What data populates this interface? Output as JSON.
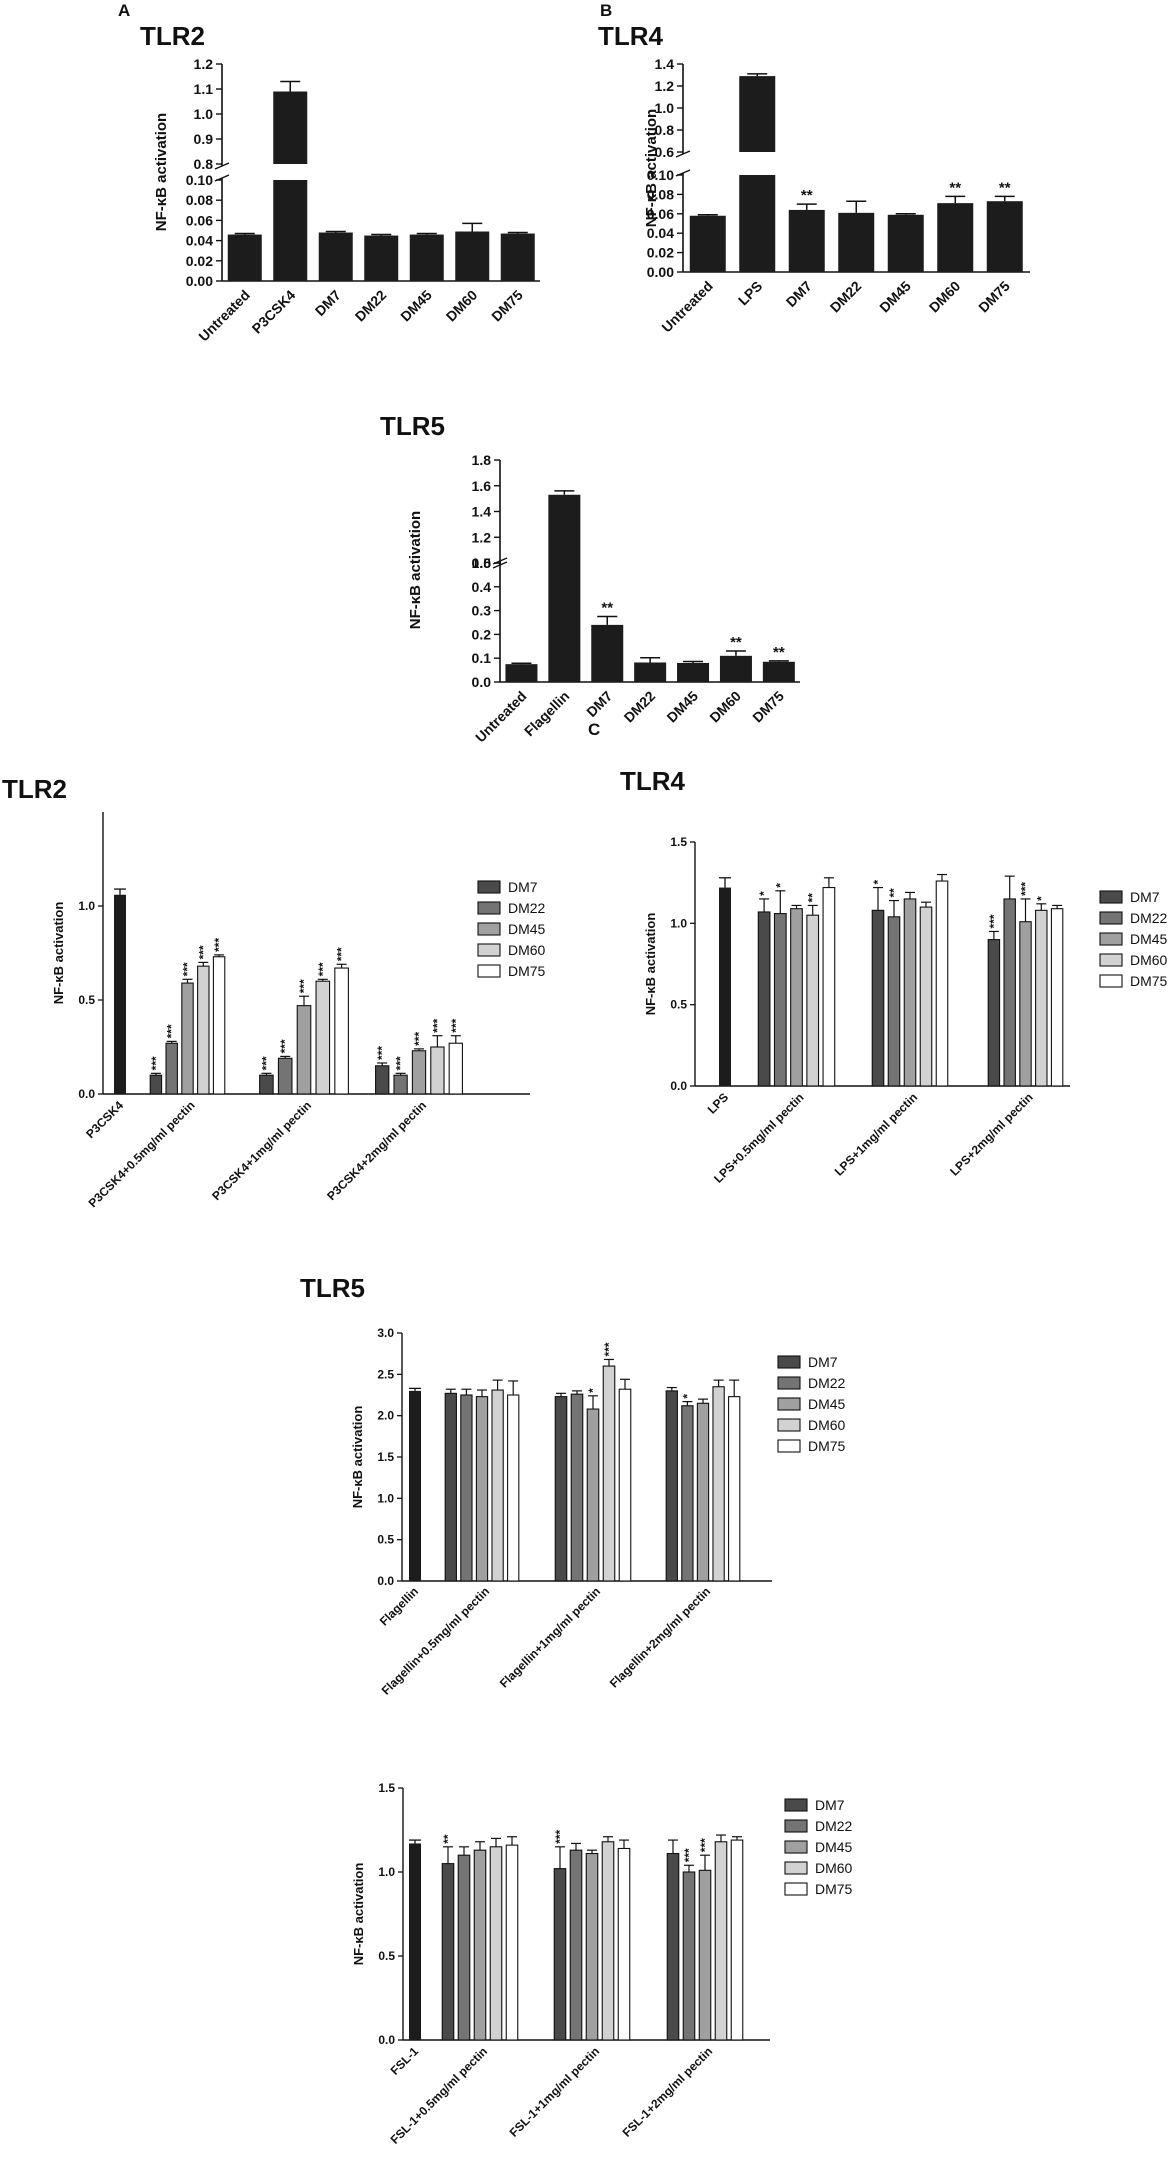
{
  "panel_labels": [
    "A",
    "B",
    "C"
  ],
  "colors": {
    "single_bar": "#1c1c1c",
    "DM7": "#4a4a4a",
    "DM22": "#747474",
    "DM45": "#a0a0a0",
    "DM60": "#d2d2d2",
    "DM75": "#ffffff"
  },
  "chart_data": [
    {
      "id": "A-TLR2",
      "panel": "A",
      "type": "bar",
      "title": "TLR2",
      "ylabel": "NF-κB activation",
      "broken_axis": true,
      "ylim_lower": [
        0,
        0.1
      ],
      "ylim_upper": [
        0.8,
        1.2
      ],
      "yticks_lower": [
        "0.00",
        "0.02",
        "0.04",
        "0.06",
        "0.08",
        "0.10"
      ],
      "yticks_upper": [
        "0.8",
        "0.9",
        "1.0",
        "1.1",
        "1.2"
      ],
      "categories": [
        "Untreated",
        "P3CSK4",
        "DM7",
        "DM22",
        "DM45",
        "DM60",
        "DM75"
      ],
      "values": [
        0.046,
        1.09,
        0.048,
        0.045,
        0.046,
        0.049,
        0.047
      ],
      "errors": [
        0.001,
        0.04,
        0.001,
        0.001,
        0.001,
        0.008,
        0.001
      ],
      "annotations": [
        "",
        "",
        "",
        "",
        "",
        "",
        ""
      ]
    },
    {
      "id": "A-TLR4",
      "panel": "A",
      "type": "bar",
      "title": "TLR4",
      "ylabel": "NF-κB activation",
      "broken_axis": true,
      "ylim_lower": [
        0,
        0.1
      ],
      "ylim_upper": [
        0.6,
        1.4
      ],
      "yticks_lower": [
        "0.00",
        "0.02",
        "0.04",
        "0.06",
        "0.08",
        "0.10"
      ],
      "yticks_upper": [
        "0.6",
        "0.8",
        "1.0",
        "1.2",
        "1.4"
      ],
      "categories": [
        "Untreated",
        "LPS",
        "DM7",
        "DM22",
        "DM45",
        "DM60",
        "DM75"
      ],
      "values": [
        0.058,
        1.29,
        0.064,
        0.061,
        0.059,
        0.071,
        0.073
      ],
      "errors": [
        0.001,
        0.02,
        0.006,
        0.012,
        0.001,
        0.007,
        0.005
      ],
      "annotations": [
        "",
        "",
        "**",
        "",
        "",
        "**",
        "**"
      ]
    },
    {
      "id": "A-TLR5",
      "panel": "A",
      "type": "bar",
      "title": "TLR5",
      "ylabel": "NF-κB activation",
      "broken_axis": true,
      "ylim_lower": [
        0,
        0.5
      ],
      "ylim_upper": [
        1.0,
        1.8
      ],
      "yticks_lower": [
        "0.0",
        "0.1",
        "0.2",
        "0.3",
        "0.4",
        "0.5"
      ],
      "yticks_upper": [
        "1.0",
        "1.2",
        "1.4",
        "1.6",
        "1.8"
      ],
      "categories": [
        "Untreated",
        "Flagellin",
        "DM7",
        "DM22",
        "DM45",
        "DM60",
        "DM75"
      ],
      "values": [
        0.075,
        1.53,
        0.24,
        0.082,
        0.08,
        0.11,
        0.085
      ],
      "errors": [
        0.004,
        0.03,
        0.035,
        0.02,
        0.006,
        0.02,
        0.004
      ],
      "annotations": [
        "",
        "",
        "**",
        "",
        "",
        "**",
        "**"
      ]
    },
    {
      "id": "B-TLR2",
      "panel": "B",
      "type": "bar",
      "title": "TLR2",
      "ylabel": "NF-κB activation",
      "ylim": [
        0,
        1.5
      ],
      "yticks": [
        "0.0",
        "0.5",
        "1.0"
      ],
      "legend": "right",
      "control": {
        "label": "P3CSK4",
        "value": 1.06,
        "error": 0.03
      },
      "groups": [
        "P3CSK4+0.5mg/ml pectin",
        "P3CSK4+1mg/ml pectin",
        "P3CSK4+2mg/ml pectin"
      ],
      "series": [
        {
          "name": "DM7",
          "values": [
            0.1,
            0.1,
            0.15
          ],
          "errors": [
            0.01,
            0.01,
            0.015
          ],
          "stars": [
            "***",
            "***",
            "***"
          ]
        },
        {
          "name": "DM22",
          "values": [
            0.27,
            0.19,
            0.1
          ],
          "errors": [
            0.01,
            0.01,
            0.01
          ],
          "stars": [
            "***",
            "***",
            "***"
          ]
        },
        {
          "name": "DM45",
          "values": [
            0.59,
            0.47,
            0.23
          ],
          "errors": [
            0.02,
            0.05,
            0.01
          ],
          "stars": [
            "***",
            "***",
            "***"
          ]
        },
        {
          "name": "DM60",
          "values": [
            0.68,
            0.6,
            0.25
          ],
          "errors": [
            0.02,
            0.01,
            0.06
          ],
          "stars": [
            "***",
            "***",
            "***"
          ]
        },
        {
          "name": "DM75",
          "values": [
            0.73,
            0.67,
            0.27
          ],
          "errors": [
            0.01,
            0.02,
            0.04
          ],
          "stars": [
            "***",
            "***",
            "***"
          ]
        }
      ]
    },
    {
      "id": "B-TLR4",
      "panel": "B",
      "type": "bar",
      "title": "TLR4",
      "ylabel": "NF-κB activation",
      "ylim": [
        0,
        1.5
      ],
      "yticks": [
        "0.0",
        "0.5",
        "1.0",
        "1.5"
      ],
      "legend": "right",
      "control": {
        "label": "LPS",
        "value": 1.22,
        "error": 0.06
      },
      "groups": [
        "LPS+0.5mg/ml pectin",
        "LPS+1mg/ml pectin",
        "LPS+2mg/ml pectin"
      ],
      "series": [
        {
          "name": "DM7",
          "values": [
            1.07,
            1.08,
            0.9
          ],
          "errors": [
            0.08,
            0.14,
            0.05
          ],
          "stars": [
            "*",
            "*",
            "***"
          ]
        },
        {
          "name": "DM22",
          "values": [
            1.06,
            1.04,
            1.15
          ],
          "errors": [
            0.14,
            0.1,
            0.14
          ],
          "stars": [
            "*",
            "**",
            ""
          ]
        },
        {
          "name": "DM45",
          "values": [
            1.09,
            1.15,
            1.01
          ],
          "errors": [
            0.02,
            0.04,
            0.14
          ],
          "stars": [
            "",
            "",
            "***"
          ]
        },
        {
          "name": "DM60",
          "values": [
            1.05,
            1.1,
            1.08
          ],
          "errors": [
            0.06,
            0.03,
            0.04
          ],
          "stars": [
            "**",
            "",
            "*"
          ]
        },
        {
          "name": "DM75",
          "values": [
            1.22,
            1.26,
            1.09
          ],
          "errors": [
            0.06,
            0.04,
            0.02
          ],
          "stars": [
            "",
            "",
            ""
          ]
        }
      ]
    },
    {
      "id": "B-TLR5",
      "panel": "B",
      "type": "bar",
      "title": "TLR5",
      "ylabel": "NF-κB activation",
      "ylim": [
        0,
        3.0
      ],
      "yticks": [
        "0.0",
        "0.5",
        "1.0",
        "1.5",
        "2.0",
        "2.5",
        "3.0"
      ],
      "legend": "right",
      "control": {
        "label": "Flagellin",
        "value": 2.3,
        "error": 0.03
      },
      "groups": [
        "Flagellin+0.5mg/ml pectin",
        "Flagellin+1mg/ml pectin",
        "Flagellin+2mg/ml pectin"
      ],
      "series": [
        {
          "name": "DM7",
          "values": [
            2.27,
            2.23,
            2.3
          ],
          "errors": [
            0.05,
            0.04,
            0.04
          ],
          "stars": [
            "",
            "",
            ""
          ]
        },
        {
          "name": "DM22",
          "values": [
            2.25,
            2.26,
            2.12
          ],
          "errors": [
            0.07,
            0.04,
            0.05
          ],
          "stars": [
            "",
            "",
            "*"
          ]
        },
        {
          "name": "DM45",
          "values": [
            2.23,
            2.08,
            2.15
          ],
          "errors": [
            0.08,
            0.16,
            0.05
          ],
          "stars": [
            "",
            "*",
            ""
          ]
        },
        {
          "name": "DM60",
          "values": [
            2.31,
            2.6,
            2.35
          ],
          "errors": [
            0.12,
            0.08,
            0.08
          ],
          "stars": [
            "",
            "***",
            ""
          ]
        },
        {
          "name": "DM75",
          "values": [
            2.25,
            2.32,
            2.23
          ],
          "errors": [
            0.17,
            0.12,
            0.2
          ],
          "stars": [
            "",
            "",
            ""
          ]
        }
      ]
    },
    {
      "id": "C-FSL1",
      "panel": "C",
      "type": "bar",
      "title": "",
      "ylabel": "NF-κB activation",
      "ylim": [
        0,
        1.5
      ],
      "yticks": [
        "0.0",
        "0.5",
        "1.0",
        "1.5"
      ],
      "legend": "right",
      "control": {
        "label": "FSL-1",
        "value": 1.17,
        "error": 0.02
      },
      "groups": [
        "FSL-1+0.5mg/ml pectin",
        "FSL-1+1mg/ml pectin",
        "FSL-1+2mg/ml pectin"
      ],
      "series": [
        {
          "name": "DM7",
          "values": [
            1.05,
            1.02,
            1.11
          ],
          "errors": [
            0.1,
            0.13,
            0.08
          ],
          "stars": [
            "**",
            "***",
            ""
          ]
        },
        {
          "name": "DM22",
          "values": [
            1.1,
            1.13,
            1.0
          ],
          "errors": [
            0.05,
            0.04,
            0.04
          ],
          "stars": [
            "",
            "",
            "***"
          ]
        },
        {
          "name": "DM45",
          "values": [
            1.13,
            1.11,
            1.01
          ],
          "errors": [
            0.05,
            0.02,
            0.09
          ],
          "stars": [
            "",
            "",
            "***"
          ]
        },
        {
          "name": "DM60",
          "values": [
            1.15,
            1.18,
            1.18
          ],
          "errors": [
            0.05,
            0.03,
            0.04
          ],
          "stars": [
            "",
            "",
            ""
          ]
        },
        {
          "name": "DM75",
          "values": [
            1.16,
            1.14,
            1.19
          ],
          "errors": [
            0.05,
            0.05,
            0.02
          ],
          "stars": [
            "",
            "",
            ""
          ]
        }
      ]
    }
  ]
}
